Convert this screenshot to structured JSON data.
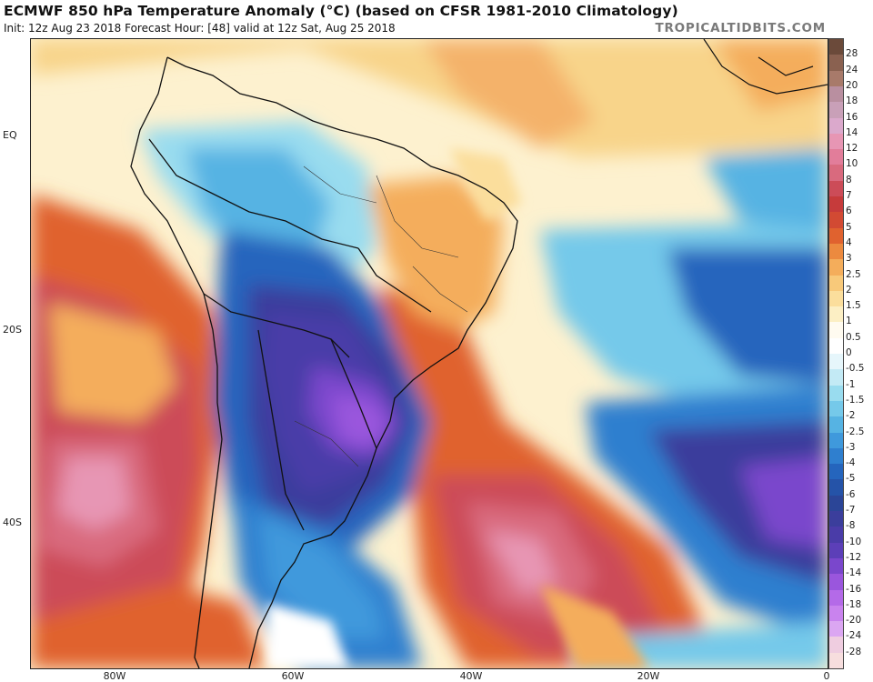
{
  "header": {
    "title": "ECMWF 850 hPa Temperature Anomaly (°C) (based on CFSR 1981-2010 Climatology)",
    "subtitle": "Init: 12z Aug 23 2018   Forecast Hour: [48]   valid at 12z Sat, Aug 25 2018",
    "credit": "TROPICALTIDBITS.COM"
  },
  "map": {
    "lat_labels": [
      "EQ",
      "20S",
      "40S"
    ],
    "lon_labels": [
      "80W",
      "60W",
      "40W",
      "20W",
      "0"
    ]
  },
  "colorbar": {
    "labels": [
      "28",
      "24",
      "20",
      "18",
      "16",
      "14",
      "12",
      "10",
      "8",
      "7",
      "6",
      "5",
      "4",
      "3",
      "2.5",
      "2",
      "1.5",
      "1",
      "0.5",
      "0",
      "-0.5",
      "-1",
      "-1.5",
      "-2",
      "-2.5",
      "-3",
      "-4",
      "-5",
      "-6",
      "-7",
      "-8",
      "-10",
      "-12",
      "-14",
      "-16",
      "-18",
      "-20",
      "-24",
      "-28"
    ],
    "colors": [
      "#6b4a3a",
      "#8a6150",
      "#a87a6a",
      "#b98fa0",
      "#c9a0b8",
      "#dba9cc",
      "#e796b4",
      "#e27d9a",
      "#d96a7e",
      "#cc4c58",
      "#c63b3b",
      "#d24a33",
      "#e0622f",
      "#ec8a3f",
      "#f4ad5b",
      "#f8c97a",
      "#fbde9c",
      "#fcefc4",
      "#fffbf0",
      "#ffffff",
      "#e6f6fb",
      "#c3eaf5",
      "#99dcef",
      "#75c9ea",
      "#56b3e3",
      "#3f99dc",
      "#2f7fcf",
      "#2565bd",
      "#2553a8",
      "#2b4597",
      "#3b3e9c",
      "#4a3ca8",
      "#5c3fb8",
      "#7a47cc",
      "#9a56dd",
      "#b46ae8",
      "#c983ee",
      "#dba6f2",
      "#efcde0",
      "#f7dede"
    ]
  }
}
